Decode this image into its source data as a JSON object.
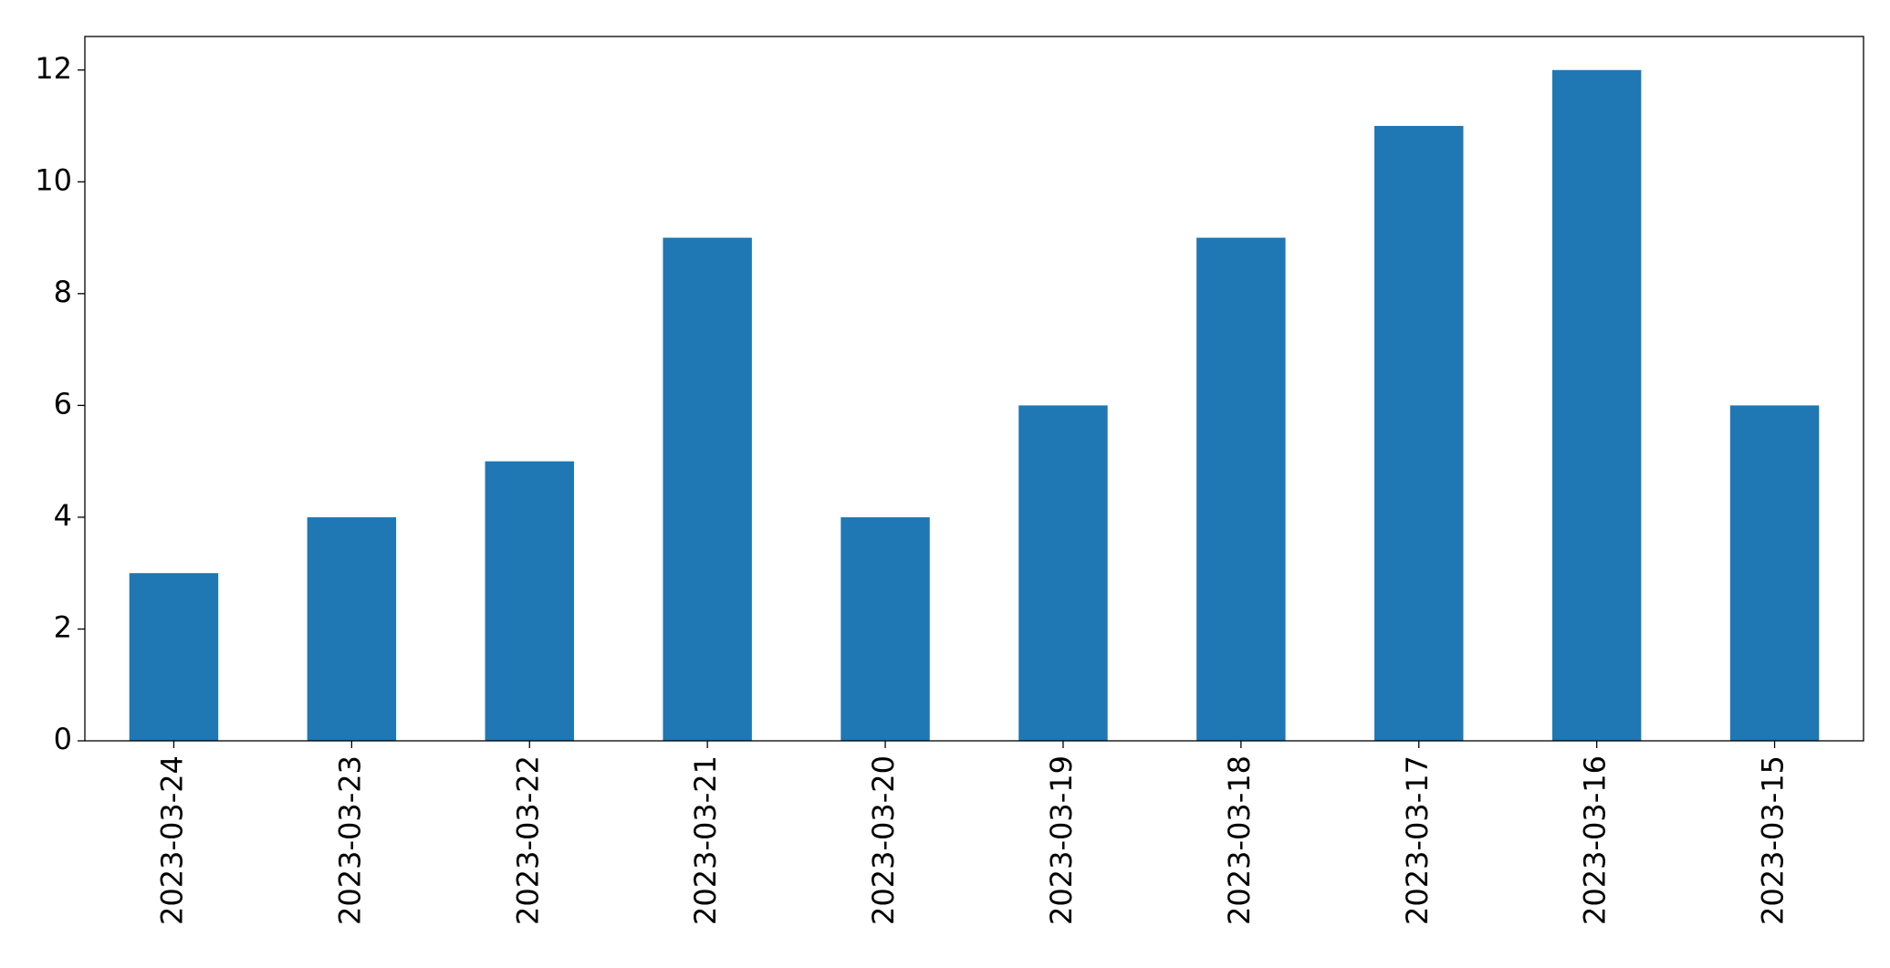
{
  "chart_data": {
    "type": "bar",
    "categories": [
      "2023-03-24",
      "2023-03-23",
      "2023-03-22",
      "2023-03-21",
      "2023-03-20",
      "2023-03-19",
      "2023-03-18",
      "2023-03-17",
      "2023-03-16",
      "2023-03-15"
    ],
    "values": [
      3,
      4,
      5,
      9,
      4,
      6,
      9,
      11,
      12,
      6
    ],
    "color": "#1f77b4",
    "ylim": [
      0,
      12.6
    ],
    "yticks": [
      0,
      2,
      4,
      6,
      8,
      10,
      12
    ],
    "grid": false
  }
}
